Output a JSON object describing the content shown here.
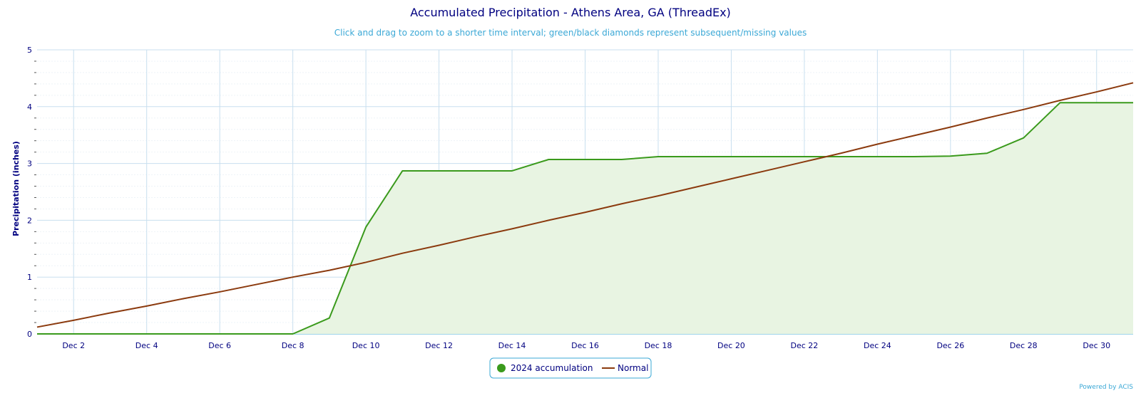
{
  "chart_data": {
    "type": "line",
    "title": "Accumulated Precipitation - Athens Area, GA (ThreadEx)",
    "subtitle": "Click and drag to zoom to a shorter time interval; green/black diamonds represent subsequent/missing values",
    "ylabel": "Precipitation (inches)",
    "xlabel": "",
    "ylim": [
      0,
      5
    ],
    "xlim": [
      1,
      31
    ],
    "y_ticks": [
      0,
      1,
      2,
      3,
      4,
      5
    ],
    "x_ticks": [
      {
        "day": 2,
        "label": "Dec 2"
      },
      {
        "day": 4,
        "label": "Dec 4"
      },
      {
        "day": 6,
        "label": "Dec 6"
      },
      {
        "day": 8,
        "label": "Dec 8"
      },
      {
        "day": 10,
        "label": "Dec 10"
      },
      {
        "day": 12,
        "label": "Dec 12"
      },
      {
        "day": 14,
        "label": "Dec 14"
      },
      {
        "day": 16,
        "label": "Dec 16"
      },
      {
        "day": 18,
        "label": "Dec 18"
      },
      {
        "day": 20,
        "label": "Dec 20"
      },
      {
        "day": 22,
        "label": "Dec 22"
      },
      {
        "day": 24,
        "label": "Dec 24"
      },
      {
        "day": 26,
        "label": "Dec 26"
      },
      {
        "day": 28,
        "label": "Dec 28"
      },
      {
        "day": 30,
        "label": "Dec 30"
      }
    ],
    "grid": true,
    "legend_position": "bottom-center",
    "series": [
      {
        "name": "2024 accumulation",
        "style": "area",
        "color": "#3a9a1c",
        "fill_color": "#e8f4e2",
        "x": [
          1,
          2,
          3,
          4,
          5,
          6,
          7,
          8,
          9,
          10,
          11,
          12,
          13,
          14,
          15,
          16,
          17,
          18,
          19,
          20,
          21,
          22,
          23,
          24,
          25,
          26,
          27,
          28,
          29,
          30,
          31
        ],
        "values": [
          0,
          0,
          0,
          0,
          0,
          0,
          0,
          0,
          0.28,
          1.88,
          2.87,
          2.87,
          2.87,
          2.87,
          3.07,
          3.07,
          3.07,
          3.12,
          3.12,
          3.12,
          3.12,
          3.12,
          3.12,
          3.12,
          3.12,
          3.13,
          3.18,
          3.45,
          4.07,
          4.07,
          4.07
        ]
      },
      {
        "name": "Normal",
        "style": "line",
        "color": "#8b3a0e",
        "x": [
          1,
          2,
          3,
          4,
          5,
          6,
          7,
          8,
          9,
          10,
          11,
          12,
          13,
          14,
          15,
          16,
          17,
          18,
          19,
          20,
          21,
          22,
          23,
          24,
          25,
          26,
          27,
          28,
          29,
          30,
          31
        ],
        "values": [
          0.12,
          0.24,
          0.37,
          0.49,
          0.62,
          0.74,
          0.87,
          1.0,
          1.12,
          1.26,
          1.42,
          1.56,
          1.71,
          1.85,
          2.0,
          2.14,
          2.29,
          2.43,
          2.58,
          2.73,
          2.88,
          3.03,
          3.18,
          3.34,
          3.49,
          3.64,
          3.8,
          3.95,
          4.11,
          4.26,
          4.42
        ]
      }
    ]
  },
  "credit": "Powered by ACIS",
  "colors": {
    "title": "#000080",
    "subtitle": "#3ba8d6",
    "grid": "#c8dfef",
    "axis": "#3ba8d6"
  }
}
